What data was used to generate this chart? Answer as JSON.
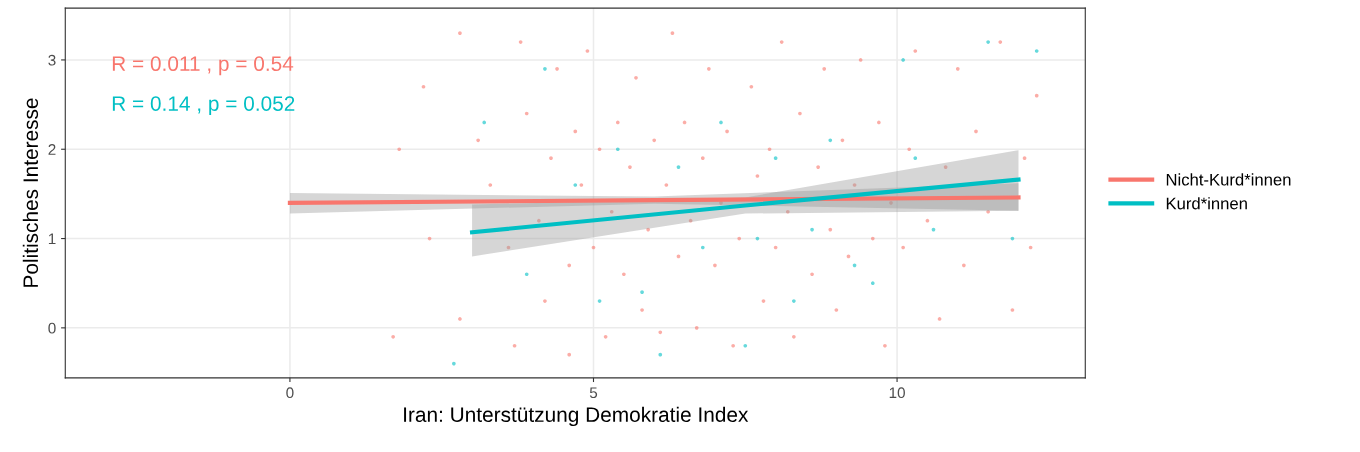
{
  "chart_data": {
    "type": "scatter",
    "xlabel": "Iran: Unterstützung Demokratie Index",
    "ylabel": "Politisches Interesse",
    "annotations": [
      "R = 0.011 , p = 0.54",
      "R = 0.14 , p = 0.052"
    ],
    "xlim": [
      -3.7,
      13.1
    ],
    "ylim": [
      -0.56,
      3.58
    ],
    "xticks": [
      0,
      5,
      10
    ],
    "yticks": [
      0,
      1,
      2,
      3
    ],
    "grid": true,
    "legend": "right",
    "series": [
      {
        "name": "Nicht-Kurd*innen",
        "type": "line",
        "color": "#f8766d",
        "x": [
          0,
          6,
          12
        ],
        "values": [
          1.4,
          1.43,
          1.46
        ],
        "lower": [
          1.28,
          1.39,
          1.31
        ],
        "upper": [
          1.51,
          1.47,
          1.62
        ]
      },
      {
        "name": "Kurd*innen",
        "type": "line",
        "color": "#00bfc4",
        "x": [
          3,
          7.5,
          12
        ],
        "values": [
          1.07,
          1.37,
          1.66
        ],
        "lower": [
          0.8,
          1.28,
          1.31
        ],
        "upper": [
          1.38,
          1.46,
          1.99
        ]
      },
      {
        "marker": "circle",
        "color": "#f8766d",
        "x": [
          1.7,
          1.8,
          2.2,
          2.3,
          2.8,
          2.8,
          3.1,
          3.3,
          3.6,
          3.7,
          3.9,
          3.8,
          4.1,
          4.2,
          4.3,
          4.4,
          4.6,
          4.7,
          4.6,
          4.8,
          4.9,
          5.0,
          5.1,
          5.2,
          5.3,
          5.4,
          5.5,
          5.6,
          5.7,
          5.8,
          5.9,
          6.0,
          6.1,
          6.2,
          6.3,
          6.4,
          6.5,
          6.6,
          6.7,
          6.8,
          6.9,
          7.0,
          7.1,
          7.2,
          7.3,
          7.4,
          7.6,
          7.7,
          7.8,
          7.9,
          8.0,
          8.1,
          8.2,
          8.3,
          8.4,
          8.6,
          8.7,
          8.8,
          8.9,
          9.0,
          9.1,
          9.2,
          9.3,
          9.4,
          9.6,
          9.7,
          9.8,
          9.9,
          10.1,
          10.2,
          10.3,
          10.5,
          10.7,
          10.8,
          11.0,
          11.1,
          11.3,
          11.5,
          11.7,
          11.9,
          12.1,
          12.2,
          12.3
        ],
        "values": [
          -0.1,
          2.0,
          2.7,
          1.0,
          0.1,
          3.3,
          2.1,
          1.6,
          0.9,
          -0.2,
          2.4,
          3.2,
          1.2,
          0.3,
          1.9,
          2.9,
          0.7,
          2.2,
          -0.3,
          1.6,
          3.1,
          0.9,
          2.0,
          -0.1,
          1.3,
          2.3,
          0.6,
          1.8,
          2.8,
          0.2,
          1.1,
          2.1,
          -0.05,
          1.6,
          3.3,
          0.8,
          2.3,
          1.2,
          0.0,
          1.9,
          2.9,
          0.7,
          1.4,
          2.2,
          -0.2,
          1.0,
          2.7,
          1.7,
          0.3,
          2.0,
          0.9,
          3.2,
          1.3,
          -0.1,
          2.4,
          0.6,
          1.8,
          2.9,
          1.1,
          0.2,
          2.1,
          0.8,
          1.6,
          3.0,
          1.0,
          2.3,
          -0.2,
          1.4,
          0.9,
          2.0,
          3.1,
          1.2,
          0.1,
          1.8,
          2.9,
          0.7,
          2.2,
          1.3,
          3.2,
          0.2,
          1.9,
          0.9,
          2.6
        ]
      },
      {
        "marker": "circle",
        "color": "#00bfc4",
        "x": [
          2.7,
          3.2,
          3.9,
          4.2,
          4.7,
          5.1,
          5.4,
          5.8,
          6.1,
          6.4,
          6.8,
          7.1,
          7.5,
          7.7,
          8.0,
          8.3,
          8.6,
          8.9,
          9.3,
          9.6,
          10.1,
          10.3,
          10.6,
          11.5,
          11.9,
          12.3
        ],
        "values": [
          -0.4,
          2.3,
          0.6,
          2.9,
          1.6,
          0.3,
          2.0,
          0.4,
          -0.3,
          1.8,
          0.9,
          2.3,
          -0.2,
          1.0,
          1.9,
          0.3,
          1.1,
          2.1,
          0.7,
          0.5,
          3.0,
          1.9,
          1.1,
          3.2,
          1.0,
          3.1
        ]
      }
    ]
  }
}
